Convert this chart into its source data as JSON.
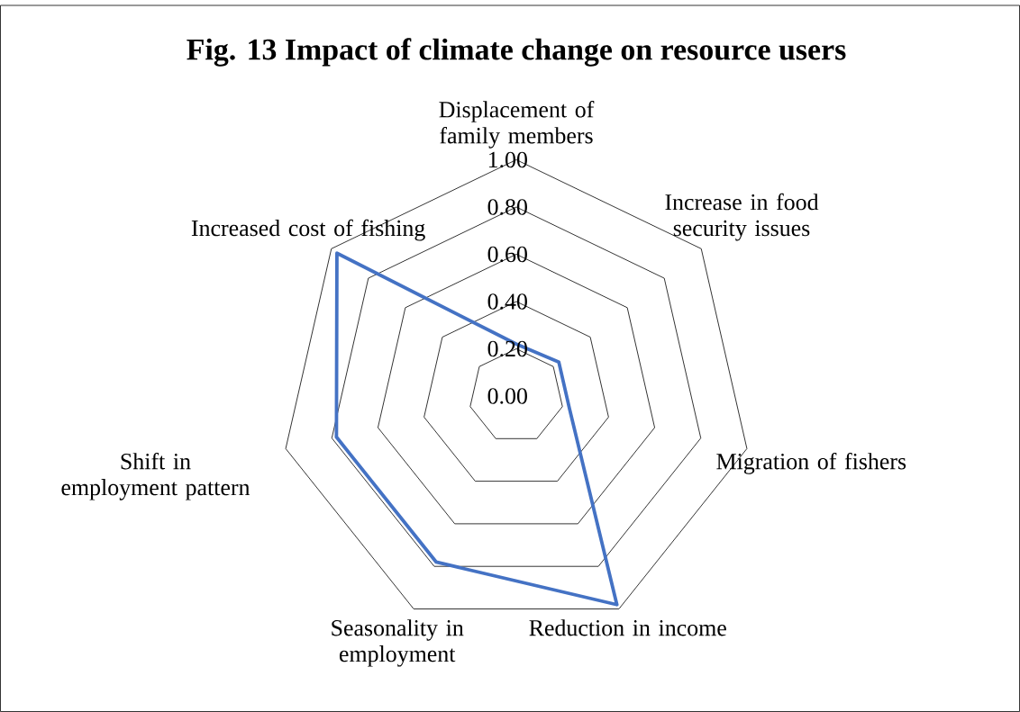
{
  "chart_data": {
    "type": "radar",
    "title": "Fig. 13 Impact of climate change on resource users",
    "categories": [
      "Displacement of family members",
      "Increase in food security issues",
      "Migration of fishers",
      "Reduction in income",
      "Seasonality in employment",
      "Shift in employment pattern",
      "Increased cost of fishing"
    ],
    "series": [
      {
        "color": "#4472c4",
        "values": [
          0.22,
          0.23,
          0.23,
          0.98,
          0.78,
          0.78,
          0.97
        ]
      }
    ],
    "ylim": [
      0,
      1
    ],
    "yticks": [
      {
        "value": 0,
        "label": "0.00"
      },
      {
        "value": 0.2,
        "label": "0.20"
      },
      {
        "value": 0.4,
        "label": "0.40"
      },
      {
        "value": 0.6,
        "label": "0.60"
      },
      {
        "value": 0.8,
        "label": "0.80"
      },
      {
        "value": 1,
        "label": "1.00"
      }
    ],
    "grid": true
  }
}
